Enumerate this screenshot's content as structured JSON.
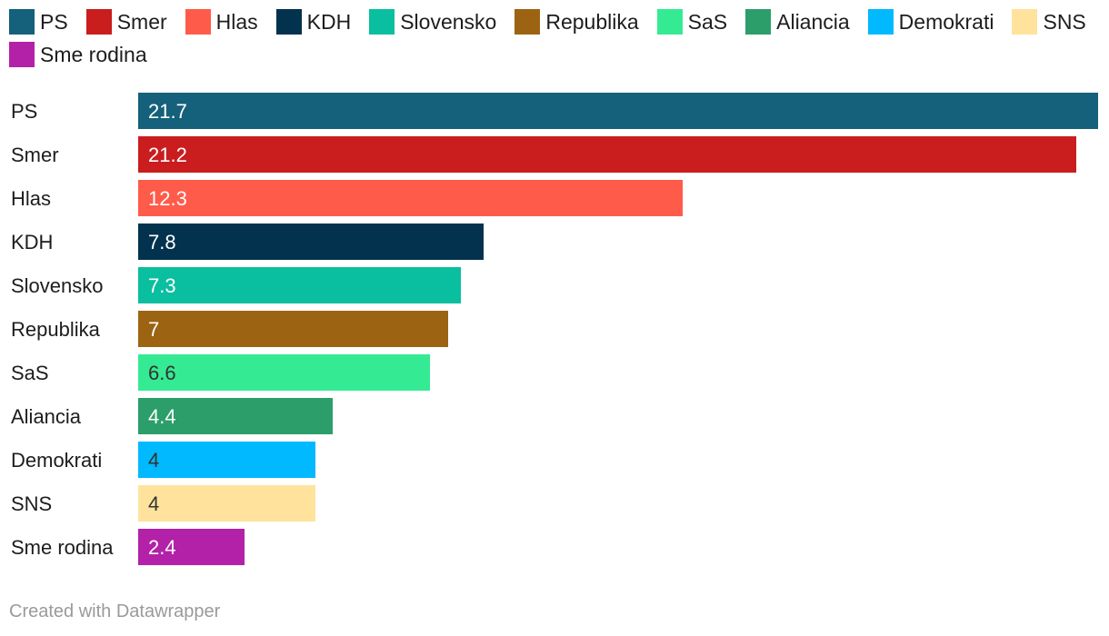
{
  "chart_data": {
    "type": "bar",
    "orientation": "horizontal",
    "title": "",
    "xlabel": "",
    "ylabel": "",
    "xlim": [
      0,
      21.7
    ],
    "grid": false,
    "legend_position": "top",
    "categories": [
      "PS",
      "Smer",
      "Hlas",
      "KDH",
      "Slovensko",
      "Republika",
      "SaS",
      "Aliancia",
      "Demokrati",
      "SNS",
      "Sme rodina"
    ],
    "values": [
      21.7,
      21.2,
      12.3,
      7.8,
      7.3,
      7,
      6.6,
      4.4,
      4,
      4,
      2.4
    ],
    "value_labels": [
      "21.7",
      "21.2",
      "12.3",
      "7.8",
      "7.3",
      "7",
      "6.6",
      "4.4",
      "4",
      "4",
      "2.4"
    ],
    "colors": [
      "#15607a",
      "#c91d1e",
      "#ff5b4a",
      "#02324e",
      "#0abfa0",
      "#9c6412",
      "#34eb93",
      "#2b9e6a",
      "#00b9ff",
      "#ffe39d",
      "#b321a8"
    ],
    "label_colors": [
      "#ffffff",
      "#ffffff",
      "#ffffff",
      "#ffffff",
      "#ffffff",
      "#ffffff",
      "#333333",
      "#ffffff",
      "#333333",
      "#333333",
      "#ffffff"
    ]
  },
  "footer": {
    "credit": "Created with Datawrapper"
  }
}
